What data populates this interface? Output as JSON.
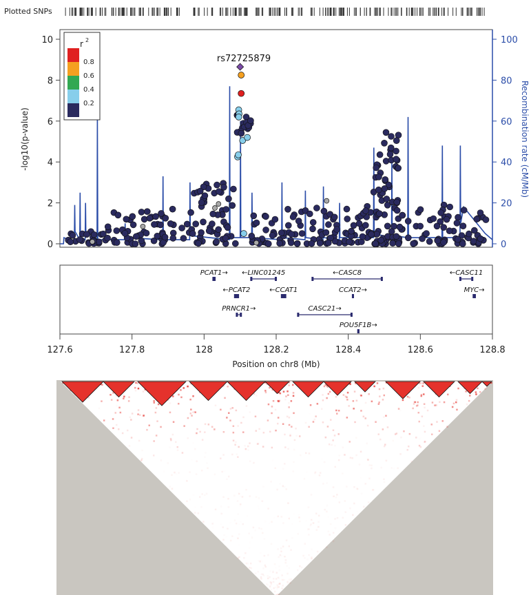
{
  "header": {
    "plotted_snps_label": "Plotted SNPs"
  },
  "lead_snp": {
    "label": "rs72725879"
  },
  "colors": {
    "recomb_line": "#2a4ca8",
    "r2_0_2": "#2a2a5e",
    "r2_0_4": "#87ceeb",
    "r2_0_6": "#32a852",
    "r2_0_8": "#f5a020",
    "r2_1_0": "#e02020",
    "lead": "#7b4aa8",
    "missing": "#a9a9a9",
    "ld_background": "#c9c6c0",
    "ld_strong": "#e5322c"
  },
  "legend": {
    "title": "r",
    "title_sup": "2",
    "labels": [
      "0.8",
      "0.6",
      "0.4",
      "0.2"
    ]
  },
  "chart_data": [
    {
      "type": "scatter",
      "title": "",
      "xlabel": "Position on chr8 (Mb)",
      "ylabel_left": "-log10(p-value)",
      "ylabel_right": "Recombination rate (cM/Mb)",
      "xlim": [
        127.6,
        128.8
      ],
      "ylim_left": [
        0,
        10
      ],
      "ylim_right": [
        0,
        100
      ],
      "x_ticks": [
        "127.6",
        "127.8",
        "128",
        "128.2",
        "128.4",
        "128.6",
        "128.8"
      ],
      "y_ticks_left": [
        "0",
        "2",
        "4",
        "6",
        "8",
        "10"
      ],
      "y_ticks_right": [
        "0",
        "20",
        "40",
        "60",
        "80",
        "100"
      ],
      "highlight_points": [
        {
          "x": 128.1,
          "y": 8.65,
          "r2": "lead"
        },
        {
          "x": 128.103,
          "y": 8.25,
          "r2": "0.6-0.8"
        },
        {
          "x": 128.103,
          "y": 7.35,
          "r2": "0.8-1.0"
        },
        {
          "x": 128.096,
          "y": 6.55,
          "r2": "0.2-0.4"
        },
        {
          "x": 128.097,
          "y": 6.35,
          "r2": "0.2-0.4"
        },
        {
          "x": 128.096,
          "y": 6.2,
          "r2": "0.2-0.4"
        },
        {
          "x": 128.107,
          "y": 5.05,
          "r2": "0.2-0.4"
        },
        {
          "x": 128.12,
          "y": 5.2,
          "r2": "0.2-0.4"
        },
        {
          "x": 128.093,
          "y": 4.25,
          "r2": "0.2-0.4"
        },
        {
          "x": 128.095,
          "y": 4.35,
          "r2": "0.2-0.4"
        },
        {
          "x": 128.11,
          "y": 0.5,
          "r2": "0.2-0.4"
        },
        {
          "x": 128.03,
          "y": 1.75,
          "r2": "missing"
        },
        {
          "x": 128.04,
          "y": 1.95,
          "r2": "missing"
        },
        {
          "x": 127.83,
          "y": 0.85,
          "r2": "missing"
        },
        {
          "x": 128.145,
          "y": 0.05,
          "r2": "missing"
        },
        {
          "x": 128.34,
          "y": 2.1,
          "r2": "missing"
        },
        {
          "x": 127.69,
          "y": 0.1,
          "r2": "missing"
        }
      ],
      "clusters": [
        {
          "x_from": 127.61,
          "x_to": 127.73,
          "y_low": 0.0,
          "y_high": 0.6,
          "n": 26
        },
        {
          "x_from": 127.73,
          "x_to": 127.96,
          "y_low": 0.0,
          "y_high": 1.7,
          "n": 60
        },
        {
          "x_from": 127.96,
          "x_to": 128.09,
          "y_low": 0.0,
          "y_high": 3.0,
          "n": 55
        },
        {
          "x_from": 128.09,
          "x_to": 128.13,
          "y_low": 5.4,
          "y_high": 6.3,
          "n": 20
        },
        {
          "x_from": 128.13,
          "x_to": 128.42,
          "y_low": 0.0,
          "y_high": 1.8,
          "n": 85
        },
        {
          "x_from": 128.42,
          "x_to": 128.52,
          "y_low": 0.0,
          "y_high": 1.9,
          "n": 40
        },
        {
          "x_from": 128.47,
          "x_to": 128.54,
          "y_low": 2.0,
          "y_high": 5.5,
          "n": 38
        },
        {
          "x_from": 128.52,
          "x_to": 128.79,
          "y_low": 0.0,
          "y_high": 2.0,
          "n": 80
        }
      ],
      "recombination_rate": {
        "x": [
          127.6,
          127.61,
          127.611,
          127.64,
          127.641,
          127.642,
          127.655,
          127.656,
          127.657,
          127.67,
          127.671,
          127.672,
          127.703,
          127.704,
          127.705,
          127.78,
          127.781,
          127.782,
          127.885,
          127.886,
          127.887,
          127.96,
          127.961,
          127.962,
          128.07,
          128.071,
          128.072,
          128.1,
          128.101,
          128.102,
          128.132,
          128.133,
          128.134,
          128.215,
          128.216,
          128.217,
          128.28,
          128.281,
          128.282,
          128.33,
          128.331,
          128.332,
          128.375,
          128.376,
          128.377,
          128.47,
          128.471,
          128.472,
          128.52,
          128.521,
          128.522,
          128.565,
          128.566,
          128.567,
          128.66,
          128.661,
          128.662,
          128.71,
          128.711,
          128.712,
          128.72,
          128.78,
          128.8
        ],
        "y": [
          0,
          0,
          3,
          1,
          19,
          6,
          2,
          25,
          3,
          2,
          20,
          5,
          2,
          62,
          2,
          2,
          10,
          3,
          2,
          33,
          2,
          2,
          30,
          4,
          2,
          77,
          3,
          3,
          60,
          3,
          3,
          25,
          3,
          2,
          30,
          3,
          2,
          26,
          3,
          2,
          28,
          3,
          2,
          20,
          3,
          3,
          47,
          5,
          3,
          42,
          4,
          3,
          62,
          3,
          3,
          48,
          3,
          3,
          48,
          10,
          18,
          5,
          2
        ]
      }
    },
    {
      "type": "gene-track",
      "genes": [
        {
          "name": "PCAT1",
          "start": 128.025,
          "end": 128.03,
          "strand": "+",
          "row": 0
        },
        {
          "name": "LINC01245",
          "start": 128.13,
          "end": 128.2,
          "strand": "-",
          "row": 0
        },
        {
          "name": "CASC8",
          "start": 128.3,
          "end": 128.494,
          "strand": "-",
          "row": 0
        },
        {
          "name": "CASC11",
          "start": 128.71,
          "end": 128.745,
          "strand": "-",
          "row": 0
        },
        {
          "name": "PCAT2",
          "start": 128.085,
          "end": 128.095,
          "strand": "-",
          "row": 1
        },
        {
          "name": "CCAT1",
          "start": 128.215,
          "end": 128.226,
          "strand": "-",
          "row": 1
        },
        {
          "name": "CCAT2",
          "start": 128.412,
          "end": 128.414,
          "strand": "+",
          "row": 1
        },
        {
          "name": "MYC",
          "start": 128.747,
          "end": 128.752,
          "strand": "+",
          "row": 1
        },
        {
          "name": "PRNCR1",
          "start": 128.09,
          "end": 128.103,
          "strand": "+",
          "row": 2
        },
        {
          "name": "CASC21",
          "start": 128.26,
          "end": 128.41,
          "strand": "+",
          "row": 2
        },
        {
          "name": "POU5F1B",
          "start": 128.427,
          "end": 128.429,
          "strand": "+",
          "row": 3
        }
      ]
    }
  ]
}
